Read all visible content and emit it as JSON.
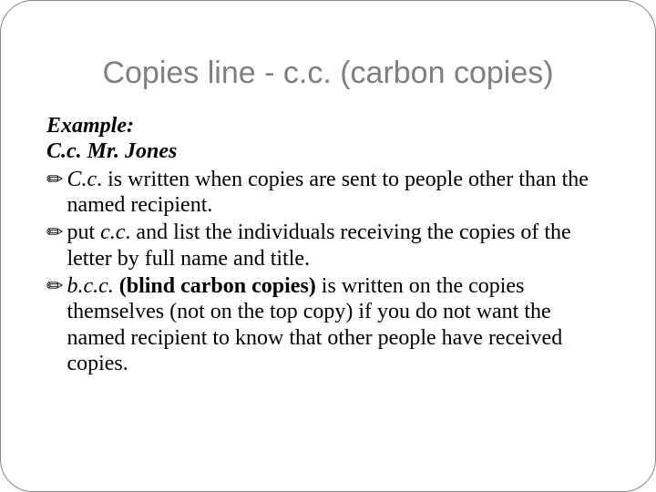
{
  "title": "Copies line - c.c. (carbon copies)",
  "exampleLabel": "Example:",
  "exampleLine": "C.c.  Mr. Jones",
  "bullets": [
    {
      "lead": "C.c",
      "rest": ". is written when copies are sent to people other than the named recipient."
    },
    {
      "pre": "put ",
      "lead": "c.c",
      "rest": ". and list the individuals receiving the copies of the letter by full name and title."
    },
    {
      "lead": "b.c.c.",
      "strong": " (blind carbon copies)",
      "rest": " is written on the copies themselves (not on the top copy) if you do not want the named recipient to know that other people have received copies."
    }
  ],
  "bulletGlyph": "✏",
  "colors": {
    "titleColor": "#7f7f7f",
    "textColor": "#000000",
    "background": "#ffffff",
    "border": "#888888"
  },
  "fonts": {
    "titleFamily": "Arial",
    "titleSize": 34,
    "bodyFamily": "Times New Roman",
    "bodySize": 24
  }
}
